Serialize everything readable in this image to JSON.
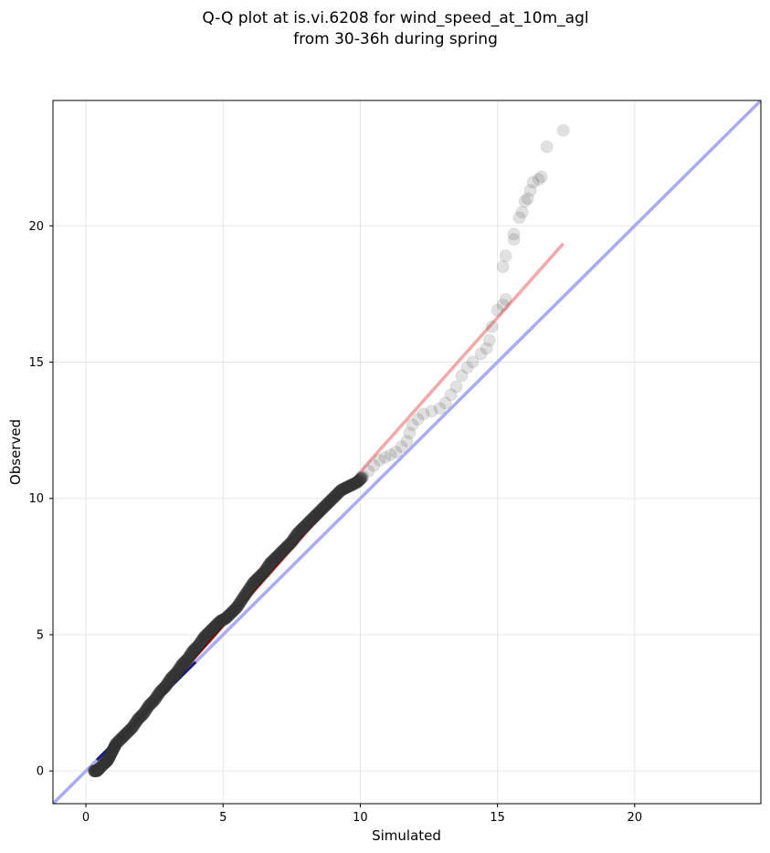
{
  "chart_data": {
    "type": "scatter",
    "title": [
      "Q-Q plot at is.vi.6208 for wind_speed_at_10m_agl",
      "from 30-36h during spring"
    ],
    "xlabel": "Simulated",
    "ylabel": "Observed",
    "xlim": [
      -1.2,
      24.6
    ],
    "ylim": [
      -1.2,
      24.6
    ],
    "xticks": [
      0,
      5,
      10,
      15,
      20
    ],
    "yticks": [
      0,
      5,
      10,
      15,
      20
    ],
    "grid": true,
    "colors": {
      "points": "#333333",
      "identity_line": "#aaaaf5",
      "fit_line": "#f5a8a8",
      "dense_fit_overlay": "#8b0000",
      "dense_identity_overlay": "#1a1a7a"
    },
    "identity_line": {
      "name": "",
      "x": [
        -1.2,
        24.6
      ],
      "y": [
        -1.2,
        24.6
      ]
    },
    "fit_line": {
      "name": "",
      "x": [
        0.3,
        17.4
      ],
      "y": [
        0.0,
        19.35
      ]
    },
    "points": [
      {
        "x": 0.3,
        "y": 0.0
      },
      {
        "x": 0.4,
        "y": 0.0
      },
      {
        "x": 0.5,
        "y": 0.1
      },
      {
        "x": 0.7,
        "y": 0.3
      },
      {
        "x": 0.8,
        "y": 0.4
      },
      {
        "x": 0.9,
        "y": 0.6
      },
      {
        "x": 1.0,
        "y": 0.8
      },
      {
        "x": 1.1,
        "y": 1.0
      },
      {
        "x": 1.3,
        "y": 1.2
      },
      {
        "x": 1.5,
        "y": 1.4
      },
      {
        "x": 1.7,
        "y": 1.6
      },
      {
        "x": 1.9,
        "y": 1.9
      },
      {
        "x": 2.1,
        "y": 2.1
      },
      {
        "x": 2.3,
        "y": 2.4
      },
      {
        "x": 2.5,
        "y": 2.6
      },
      {
        "x": 2.7,
        "y": 2.9
      },
      {
        "x": 2.9,
        "y": 3.1
      },
      {
        "x": 3.1,
        "y": 3.4
      },
      {
        "x": 3.3,
        "y": 3.6
      },
      {
        "x": 3.5,
        "y": 3.9
      },
      {
        "x": 3.7,
        "y": 4.1
      },
      {
        "x": 3.9,
        "y": 4.4
      },
      {
        "x": 4.1,
        "y": 4.6
      },
      {
        "x": 4.3,
        "y": 4.9
      },
      {
        "x": 4.5,
        "y": 5.1
      },
      {
        "x": 4.7,
        "y": 5.3
      },
      {
        "x": 4.9,
        "y": 5.5
      },
      {
        "x": 5.1,
        "y": 5.6
      },
      {
        "x": 5.3,
        "y": 5.8
      },
      {
        "x": 5.5,
        "y": 6.0
      },
      {
        "x": 5.7,
        "y": 6.3
      },
      {
        "x": 5.9,
        "y": 6.6
      },
      {
        "x": 6.1,
        "y": 6.9
      },
      {
        "x": 6.3,
        "y": 7.1
      },
      {
        "x": 6.5,
        "y": 7.3
      },
      {
        "x": 6.7,
        "y": 7.6
      },
      {
        "x": 6.9,
        "y": 7.8
      },
      {
        "x": 7.1,
        "y": 8.0
      },
      {
        "x": 7.3,
        "y": 8.2
      },
      {
        "x": 7.5,
        "y": 8.4
      },
      {
        "x": 7.7,
        "y": 8.7
      },
      {
        "x": 7.9,
        "y": 8.9
      },
      {
        "x": 8.1,
        "y": 9.1
      },
      {
        "x": 8.3,
        "y": 9.3
      },
      {
        "x": 8.5,
        "y": 9.5
      },
      {
        "x": 8.7,
        "y": 9.7
      },
      {
        "x": 8.9,
        "y": 9.9
      },
      {
        "x": 9.1,
        "y": 10.1
      },
      {
        "x": 9.3,
        "y": 10.3
      },
      {
        "x": 9.5,
        "y": 10.4
      },
      {
        "x": 9.7,
        "y": 10.5
      },
      {
        "x": 9.9,
        "y": 10.6
      },
      {
        "x": 10.1,
        "y": 10.8
      },
      {
        "x": 10.3,
        "y": 11.0
      },
      {
        "x": 10.5,
        "y": 11.2
      },
      {
        "x": 10.7,
        "y": 11.4
      },
      {
        "x": 10.9,
        "y": 11.5
      },
      {
        "x": 11.1,
        "y": 11.6
      },
      {
        "x": 11.3,
        "y": 11.7
      },
      {
        "x": 11.5,
        "y": 11.9
      },
      {
        "x": 11.7,
        "y": 12.1
      },
      {
        "x": 11.8,
        "y": 12.4
      },
      {
        "x": 11.9,
        "y": 12.7
      },
      {
        "x": 12.1,
        "y": 12.9
      },
      {
        "x": 12.3,
        "y": 13.1
      },
      {
        "x": 12.6,
        "y": 13.2
      },
      {
        "x": 12.9,
        "y": 13.3
      },
      {
        "x": 13.1,
        "y": 13.5
      },
      {
        "x": 13.3,
        "y": 13.8
      },
      {
        "x": 13.5,
        "y": 14.1
      },
      {
        "x": 13.7,
        "y": 14.5
      },
      {
        "x": 13.9,
        "y": 14.8
      },
      {
        "x": 14.1,
        "y": 15.0
      },
      {
        "x": 14.4,
        "y": 15.3
      },
      {
        "x": 14.6,
        "y": 15.5
      },
      {
        "x": 14.7,
        "y": 15.8
      },
      {
        "x": 14.8,
        "y": 16.3
      },
      {
        "x": 15.0,
        "y": 16.9
      },
      {
        "x": 15.2,
        "y": 17.1
      },
      {
        "x": 15.3,
        "y": 17.3
      },
      {
        "x": 15.2,
        "y": 18.5
      },
      {
        "x": 15.3,
        "y": 18.9
      },
      {
        "x": 15.6,
        "y": 19.5
      },
      {
        "x": 15.6,
        "y": 19.7
      },
      {
        "x": 15.8,
        "y": 20.3
      },
      {
        "x": 15.9,
        "y": 20.5
      },
      {
        "x": 16.0,
        "y": 20.9
      },
      {
        "x": 16.1,
        "y": 21.0
      },
      {
        "x": 16.2,
        "y": 21.3
      },
      {
        "x": 16.3,
        "y": 21.6
      },
      {
        "x": 16.5,
        "y": 21.7
      },
      {
        "x": 16.6,
        "y": 21.8
      },
      {
        "x": 16.8,
        "y": 22.9
      },
      {
        "x": 17.4,
        "y": 23.5
      }
    ]
  }
}
